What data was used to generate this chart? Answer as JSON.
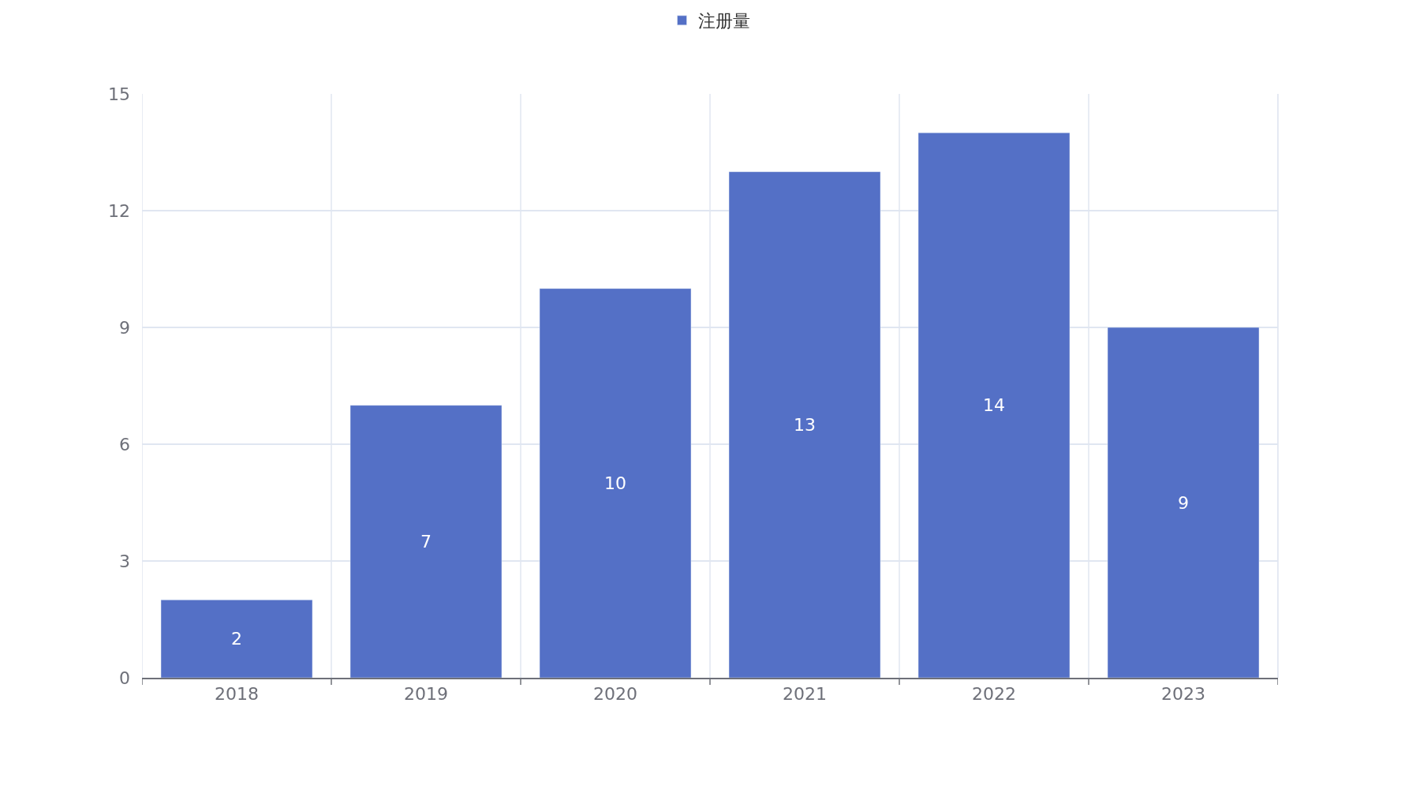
{
  "chart_data": {
    "type": "bar",
    "categories": [
      "2018",
      "2019",
      "2020",
      "2021",
      "2022",
      "2023"
    ],
    "series": [
      {
        "name": "注册量",
        "color": "#5470c6",
        "values": [
          2,
          7,
          10,
          13,
          14,
          9
        ]
      }
    ],
    "ylim": [
      0,
      15
    ],
    "yticks": [
      0,
      3,
      6,
      9,
      12,
      15
    ],
    "grid": true,
    "legend": "top",
    "data_labels": true
  }
}
